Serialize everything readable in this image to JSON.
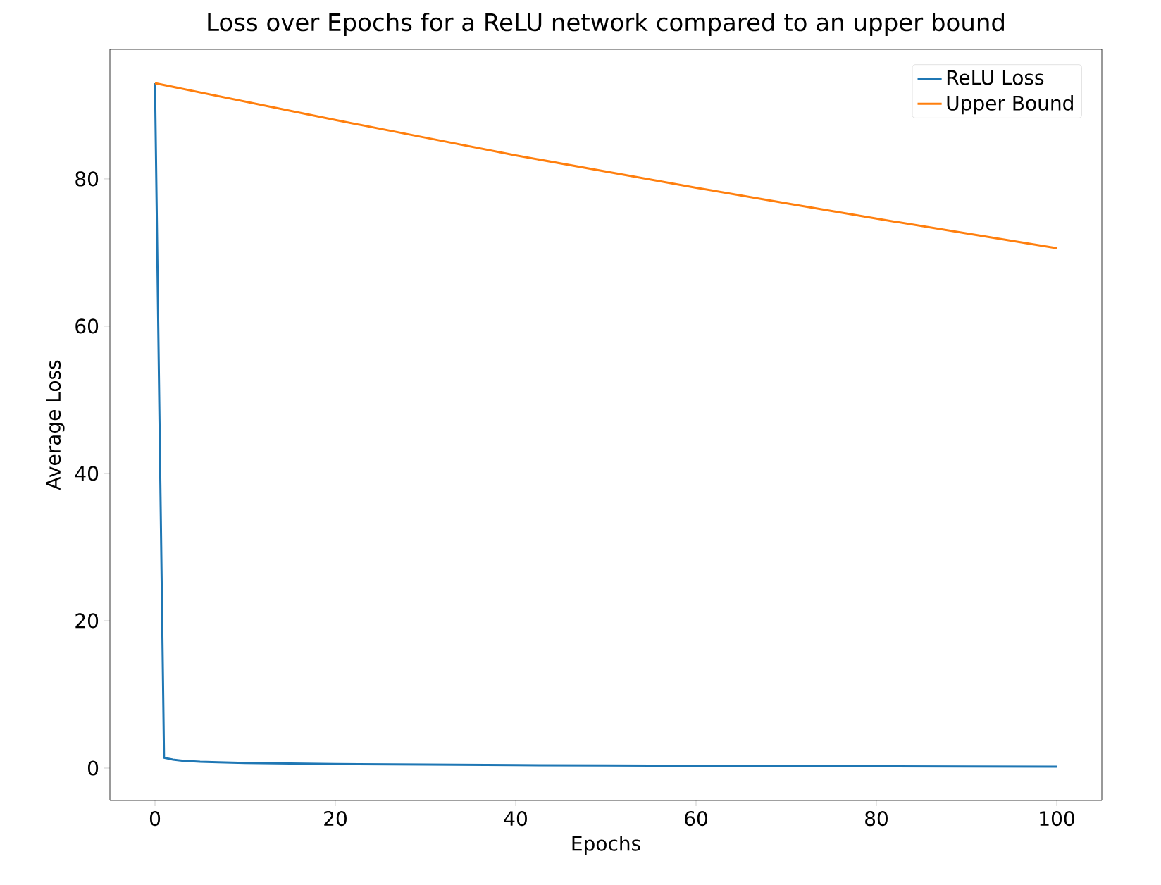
{
  "chart_data": {
    "type": "line",
    "title": "Loss over Epochs for a ReLU network compared to an upper bound",
    "xlabel": "Epochs",
    "ylabel": "Average Loss",
    "series": [
      {
        "name": "ReLU Loss",
        "color": "#1f77b4",
        "x": [
          0,
          1,
          2,
          3,
          5,
          7,
          10,
          15,
          20,
          30,
          40,
          50,
          60,
          70,
          80,
          90,
          100
        ],
        "values": [
          93,
          1.4,
          1.15,
          1.0,
          0.85,
          0.78,
          0.7,
          0.62,
          0.55,
          0.47,
          0.4,
          0.35,
          0.3,
          0.28,
          0.25,
          0.22,
          0.2
        ]
      },
      {
        "name": "Upper Bound",
        "color": "#ff7f0e",
        "x": [
          0,
          10,
          20,
          30,
          40,
          50,
          60,
          70,
          80,
          90,
          100
        ],
        "values": [
          93,
          90.5,
          88.0,
          85.6,
          83.2,
          81.0,
          78.8,
          76.7,
          74.6,
          72.6,
          70.6
        ]
      }
    ],
    "xlim": [
      -5,
      105
    ],
    "ylim": [
      -4.4,
      97.6
    ],
    "xticks": [
      0,
      20,
      40,
      60,
      80,
      100
    ],
    "yticks": [
      0,
      20,
      40,
      60,
      80
    ],
    "legend": "top right",
    "grid": false,
    "line_style": "solid",
    "marker": "none"
  }
}
